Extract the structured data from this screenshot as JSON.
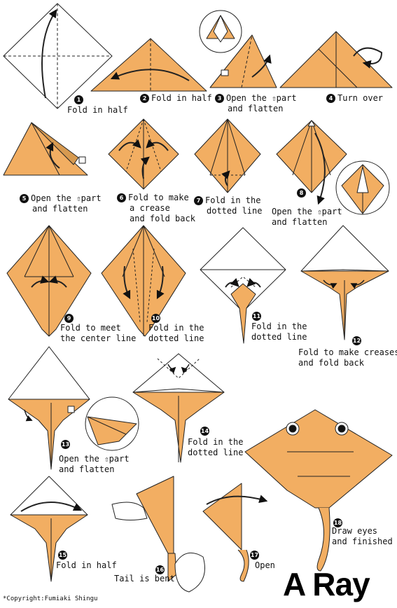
{
  "title": "A Ray",
  "copyright": "*Copyright:Fumiaki Shingu",
  "colors": {
    "paper": "#F2AE62",
    "outline": "#222222",
    "back": "#ffffff"
  },
  "steps": [
    {
      "n": "1",
      "text": "Fold in half"
    },
    {
      "n": "2",
      "text": "Fold in half"
    },
    {
      "n": "3",
      "line1": "Open the",
      "icon": "up-arrow-icon",
      "line1b": "part",
      "line2": "and flatten"
    },
    {
      "n": "4",
      "text": "Turn over"
    },
    {
      "n": "5",
      "line1": "Open the",
      "icon": "up-arrow-icon",
      "line1b": "part",
      "line2": "and flatten"
    },
    {
      "n": "6",
      "line1": "Fold to make",
      "line2": "a crease",
      "line3": "and fold back"
    },
    {
      "n": "7",
      "line1": "Fold in the",
      "line2": "dotted line"
    },
    {
      "n": "8",
      "line1": "Open the",
      "icon": "up-arrow-icon",
      "line1b": "part",
      "line2": "and flatten"
    },
    {
      "n": "9",
      "line1": "Fold to meet",
      "line2": "the center line"
    },
    {
      "n": "10",
      "line1": "Fold in the",
      "line2": "dotted line"
    },
    {
      "n": "11",
      "line1": "Fold in the",
      "line2": "dotted line"
    },
    {
      "n": "12",
      "line1": "Fold to make creases",
      "line2": "and fold back"
    },
    {
      "n": "13",
      "line1": "Open the",
      "icon": "up-arrow-icon",
      "line1b": "part",
      "line2": "and flatten"
    },
    {
      "n": "14",
      "line1": "Fold in the",
      "line2": "dotted line"
    },
    {
      "n": "15",
      "text": "Fold in half"
    },
    {
      "n": "16",
      "text": "Tail is bent"
    },
    {
      "n": "17",
      "text": "Open"
    },
    {
      "n": "18",
      "line1": "Draw eyes",
      "line2": "and finished"
    }
  ]
}
